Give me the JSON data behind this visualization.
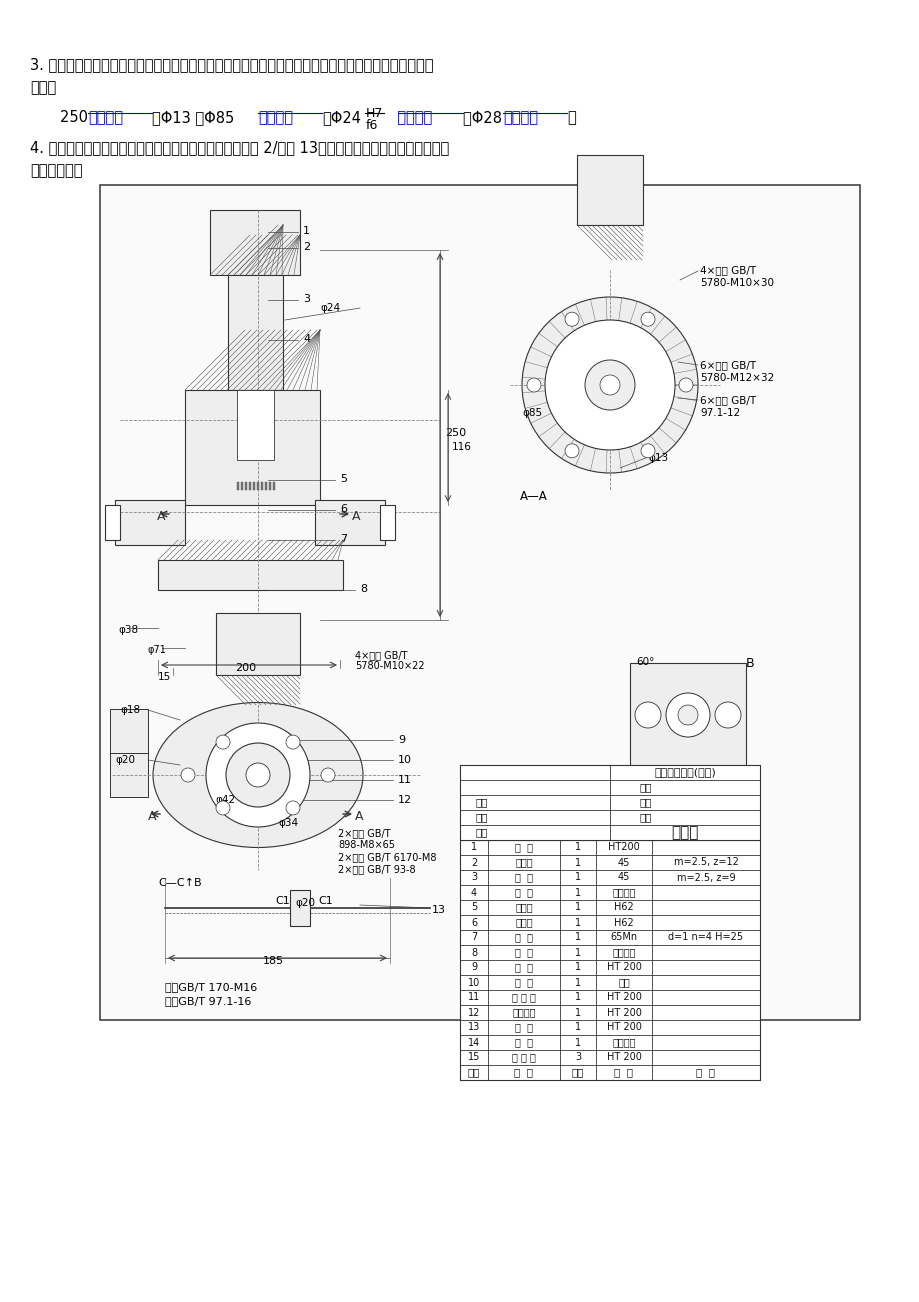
{
  "page_bg": "#ffffff",
  "text_color": "#000000",
  "blue_color": "#0000cc",
  "drawing_border": "#000000",
  "q3_line1": "3. 装配图中只标注了必要的尺寸（安装、性能、配合、总体尺寸等），请说明以下几种尺寸分别属于哪",
  "q3_line2": "一类？",
  "q3_frac_top": "H7",
  "q3_frac_bot": "f6",
  "q4_line1": "4. 选择合理的视图，要求按原图大小拆画零件图：齿轮轴 2/手把 13（不需要标注尺寸，也不必画图框",
  "q4_line2": "和标题栏）。",
  "table_headers": [
    "序号",
    "名  称",
    "件数",
    "材  料",
    "备  注"
  ],
  "table_rows": [
    [
      "15",
      "下 封 盖",
      "3",
      "HT 200",
      ""
    ],
    [
      "14",
      "垫  片",
      "1",
      "工业用纸",
      ""
    ],
    [
      "13",
      "手  把",
      "1",
      "HT 200",
      ""
    ],
    [
      "12",
      "填料压盖",
      "1",
      "HT 200",
      ""
    ],
    [
      "11",
      "上 封 盖",
      "1",
      "HT 200",
      ""
    ],
    [
      "10",
      "填  料",
      "1",
      "石棉",
      ""
    ],
    [
      "9",
      "阀  杆",
      "1",
      "HT 200",
      ""
    ],
    [
      "8",
      "垫  片",
      "1",
      "工业用纸",
      ""
    ],
    [
      "7",
      "弹  簧",
      "1",
      "65Mn",
      "d=1 n=4 H=25"
    ],
    [
      "6",
      "内阀瓣",
      "1",
      "H62",
      ""
    ],
    [
      "5",
      "外阀瓣",
      "1",
      "H62",
      ""
    ],
    [
      "4",
      "垫  片",
      "1",
      "工业用纸",
      ""
    ],
    [
      "3",
      "齿  轮",
      "1",
      "45",
      "m=2.5, z=9"
    ],
    [
      "2",
      "齿轮轴",
      "1",
      "45",
      "m=2.5, z=12"
    ],
    [
      "1",
      "阀  盖",
      "1",
      "HT200",
      ""
    ]
  ],
  "title_block": {
    "name": "快速阀",
    "scale_label": "比例",
    "parts_label": "件数",
    "weight_label": "重量",
    "draw_label": "制图",
    "check_label": "描图",
    "approve_label": "审核",
    "school": "中国石油大学(北京)"
  }
}
